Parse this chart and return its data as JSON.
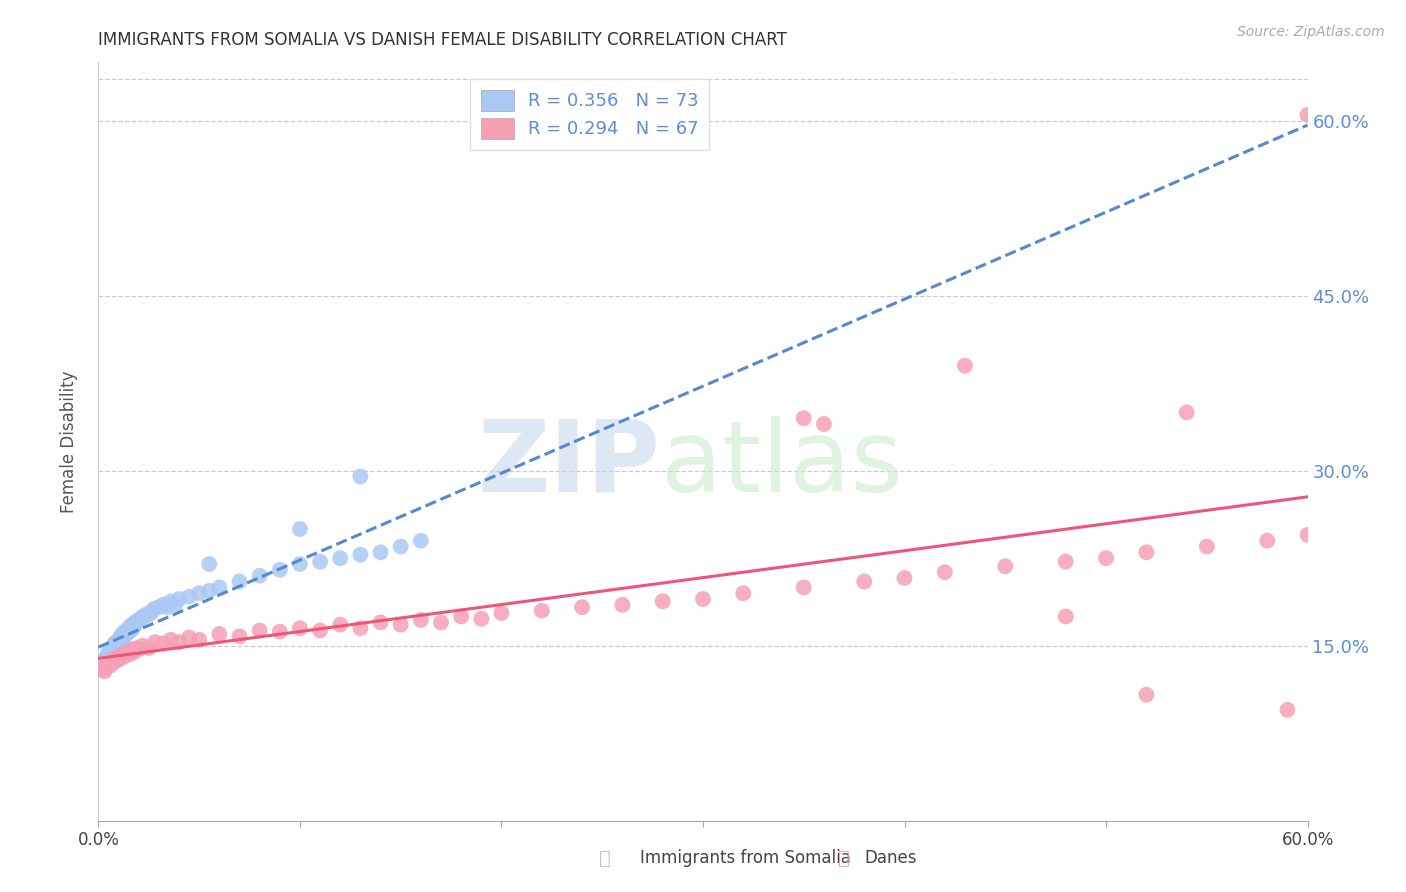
{
  "title": "IMMIGRANTS FROM SOMALIA VS DANISH FEMALE DISABILITY CORRELATION CHART",
  "source": "Source: ZipAtlas.com",
  "xlabel_somalia": "Immigrants from Somalia",
  "xlabel_danes": "Danes",
  "ylabel": "Female Disability",
  "xmin": 0.0,
  "xmax": 0.6,
  "ymin": 0.0,
  "ymax": 0.65,
  "legend_r1": "R = 0.356",
  "legend_n1": "N = 73",
  "legend_r2": "R = 0.294",
  "legend_n2": "N = 67",
  "somalia_color": "#aac8f5",
  "danes_color": "#f5a0b5",
  "somalia_line_color": "#5588cc",
  "danes_line_color": "#ee5577",
  "right_axis_color": "#5b8dd9",
  "somalia_x": [
    0.002,
    0.003,
    0.003,
    0.004,
    0.004,
    0.005,
    0.005,
    0.005,
    0.006,
    0.006,
    0.006,
    0.007,
    0.007,
    0.007,
    0.008,
    0.008,
    0.008,
    0.009,
    0.009,
    0.009,
    0.01,
    0.01,
    0.01,
    0.011,
    0.011,
    0.012,
    0.012,
    0.012,
    0.013,
    0.013,
    0.014,
    0.014,
    0.015,
    0.015,
    0.016,
    0.016,
    0.017,
    0.017,
    0.018,
    0.018,
    0.019,
    0.02,
    0.021,
    0.022,
    0.023,
    0.024,
    0.025,
    0.026,
    0.027,
    0.028,
    0.03,
    0.032,
    0.034,
    0.036,
    0.038,
    0.04,
    0.045,
    0.05,
    0.055,
    0.06,
    0.07,
    0.08,
    0.09,
    0.1,
    0.11,
    0.12,
    0.13,
    0.14,
    0.15,
    0.16,
    0.055,
    0.1,
    0.13
  ],
  "somalia_y": [
    0.135,
    0.138,
    0.13,
    0.14,
    0.133,
    0.142,
    0.138,
    0.145,
    0.14,
    0.143,
    0.137,
    0.145,
    0.148,
    0.142,
    0.148,
    0.152,
    0.145,
    0.15,
    0.153,
    0.147,
    0.152,
    0.155,
    0.148,
    0.155,
    0.158,
    0.152,
    0.157,
    0.16,
    0.158,
    0.162,
    0.16,
    0.163,
    0.162,
    0.165,
    0.163,
    0.167,
    0.165,
    0.168,
    0.167,
    0.17,
    0.17,
    0.172,
    0.173,
    0.175,
    0.175,
    0.177,
    0.177,
    0.178,
    0.18,
    0.182,
    0.183,
    0.185,
    0.183,
    0.188,
    0.185,
    0.19,
    0.192,
    0.195,
    0.197,
    0.2,
    0.205,
    0.21,
    0.215,
    0.22,
    0.222,
    0.225,
    0.228,
    0.23,
    0.235,
    0.24,
    0.22,
    0.25,
    0.295
  ],
  "danes_x": [
    0.002,
    0.003,
    0.004,
    0.005,
    0.006,
    0.007,
    0.008,
    0.009,
    0.01,
    0.011,
    0.012,
    0.013,
    0.014,
    0.015,
    0.016,
    0.017,
    0.018,
    0.019,
    0.02,
    0.022,
    0.025,
    0.028,
    0.032,
    0.036,
    0.04,
    0.045,
    0.05,
    0.06,
    0.07,
    0.08,
    0.09,
    0.1,
    0.11,
    0.12,
    0.13,
    0.14,
    0.15,
    0.16,
    0.17,
    0.18,
    0.19,
    0.2,
    0.22,
    0.24,
    0.26,
    0.28,
    0.3,
    0.32,
    0.35,
    0.38,
    0.4,
    0.42,
    0.45,
    0.48,
    0.5,
    0.52,
    0.55,
    0.58,
    0.6,
    0.54,
    0.35,
    0.48,
    0.6,
    0.43,
    0.36,
    0.52,
    0.59
  ],
  "danes_y": [
    0.13,
    0.128,
    0.132,
    0.135,
    0.133,
    0.138,
    0.136,
    0.14,
    0.138,
    0.142,
    0.14,
    0.143,
    0.142,
    0.145,
    0.143,
    0.147,
    0.145,
    0.148,
    0.147,
    0.15,
    0.148,
    0.153,
    0.152,
    0.155,
    0.153,
    0.157,
    0.155,
    0.16,
    0.158,
    0.163,
    0.162,
    0.165,
    0.163,
    0.168,
    0.165,
    0.17,
    0.168,
    0.172,
    0.17,
    0.175,
    0.173,
    0.178,
    0.18,
    0.183,
    0.185,
    0.188,
    0.19,
    0.195,
    0.2,
    0.205,
    0.208,
    0.213,
    0.218,
    0.222,
    0.225,
    0.23,
    0.235,
    0.24,
    0.245,
    0.35,
    0.345,
    0.175,
    0.605,
    0.39,
    0.34,
    0.108,
    0.095
  ]
}
